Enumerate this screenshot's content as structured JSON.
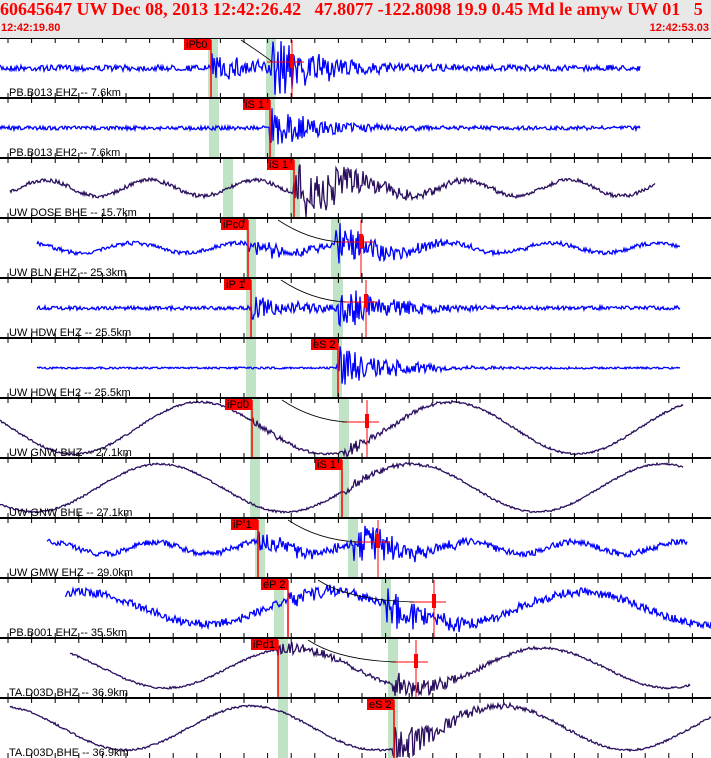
{
  "header": {
    "title": "60645647 UW Dec 08, 2013 12:42:26.42   47.8077 -122.8098 19.9 0.45 Md le amyw UW 01   5",
    "start_time": "12:42:19.80",
    "end_time": "12:42:53.03"
  },
  "colors": {
    "pick": "#ff0000",
    "band": "#bfe3c4",
    "short_period": "#0000ff",
    "broadband": "#2a0f5e"
  },
  "traces": [
    {
      "label": "PB.B013 EHZ -- 7.6km",
      "type": "short_period",
      "pick": "iPc0"
    },
    {
      "label": "PB.B013 EH2 -- 7.6km",
      "type": "short_period",
      "pick": "iS 1"
    },
    {
      "label": "UW DOSE BHE -- 15.7km",
      "type": "broadband",
      "pick": "iS 1"
    },
    {
      "label": "UW BLN EHZ -- 25.3km",
      "type": "short_period",
      "pick": "iPc0"
    },
    {
      "label": "UW HDW EHZ -- 25.5km",
      "type": "short_period",
      "pick": "iP 1"
    },
    {
      "label": "UW HDW EH2 -- 25.5km",
      "type": "short_period",
      "pick": "eS 2"
    },
    {
      "label": "UW GNW BHZ -- 27.1km",
      "type": "broadband",
      "pick": "iPd0"
    },
    {
      "label": "UW GNW BHE -- 27.1km",
      "type": "broadband",
      "pick": "iS 1"
    },
    {
      "label": "UW GMW EHZ -- 29.0km",
      "type": "short_period",
      "pick": "iP 1"
    },
    {
      "label": "PB.B001 EHZ -- 35.5km",
      "type": "short_period",
      "pick": "eP 2"
    },
    {
      "label": "TA.D03D BHZ -- 36.9km",
      "type": "broadband",
      "pick": "iPd1"
    },
    {
      "label": "TA.D03D BHE -- 36.9km",
      "type": "broadband",
      "pick": "eS 2"
    }
  ]
}
